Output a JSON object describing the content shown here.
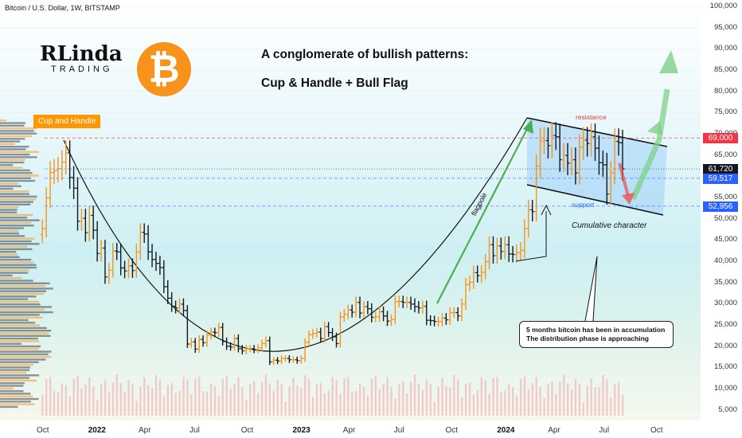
{
  "header": {
    "symbol_line": "Bitcoin / U.S. Dollar, 1W, BITSTAMP"
  },
  "logo": {
    "line1": "RLinda",
    "line2": "TRADING"
  },
  "btc_icon": {
    "glyph": "₿",
    "color": "#f7931a"
  },
  "titles": {
    "line1": "A conglomerate of bullish patterns:",
    "line2": "Cup & Handle  +  Bull Flag"
  },
  "annotations": {
    "cup_label": "Cup and Handle",
    "resistance": "resistance",
    "support": "support",
    "flagpole": "flagpole",
    "cumulative": "Cumulative character",
    "note_line1": "5 months bitcoin has been in accumulation",
    "note_line2": "The distribution phase is approaching"
  },
  "colors": {
    "up_candle": "#f7931a",
    "down_candle": "#131722",
    "resistance": "#e53935",
    "support": "#2962ff",
    "current": "#131722",
    "arrow_green": "#4caf50",
    "arrow_red": "#ef5350",
    "flag_fill": "#90caf9"
  },
  "chart_data": {
    "type": "bar",
    "subtype": "ohlc-weekly",
    "symbol": "Bitcoin / U.S. Dollar",
    "interval": "1W",
    "exchange": "BITSTAMP",
    "ylim": [
      4000,
      100000
    ],
    "y_ticks": [
      5000,
      10000,
      15000,
      20000,
      25000,
      30000,
      35000,
      40000,
      45000,
      50000,
      55000,
      60000,
      65000,
      70000,
      75000,
      80000,
      85000,
      90000,
      95000,
      100000
    ],
    "y_tick_labels": [
      "5,000",
      "10,000",
      "15,000",
      "20,000",
      "25,000",
      "30,000",
      "35,000",
      "40,000",
      "45,000",
      "50,000",
      "55,000",
      "60,000",
      "65,000",
      "70,000",
      "75,000",
      "80,000",
      "85,000",
      "90,000",
      "95,000",
      "100,000"
    ],
    "x_ticks": [
      "Oct",
      "2022",
      "Apr",
      "Jul",
      "Oct",
      "2023",
      "Apr",
      "Jul",
      "Oct",
      "2024",
      "Apr",
      "Jul",
      "Oct"
    ],
    "x_tick_dates": [
      "2021-10",
      "2022-01",
      "2022-04",
      "2022-07",
      "2022-10",
      "2023-01",
      "2023-04",
      "2023-07",
      "2023-10",
      "2024-01",
      "2024-04",
      "2024-07",
      "2024-10"
    ],
    "price_levels": [
      {
        "label": "69,000",
        "value": 69000,
        "color": "#f23645",
        "style": "dashed"
      },
      {
        "label": "61,720",
        "value": 61720,
        "color": "#131722",
        "style": "dotted"
      },
      {
        "label": "59,517",
        "value": 59517,
        "color": "#2962ff",
        "style": "dashed"
      },
      {
        "label": "52,956",
        "value": 52956,
        "color": "#2962ff",
        "style": "dashed"
      }
    ],
    "series_close": [
      [
        "2021-09-27",
        47700
      ],
      [
        "2021-10-04",
        54900
      ],
      [
        "2021-10-11",
        60900
      ],
      [
        "2021-10-18",
        61300
      ],
      [
        "2021-10-25",
        61800
      ],
      [
        "2021-11-01",
        63300
      ],
      [
        "2021-11-08",
        65500
      ],
      [
        "2021-11-15",
        59700
      ],
      [
        "2021-11-22",
        57200
      ],
      [
        "2021-11-29",
        49400
      ],
      [
        "2021-12-06",
        50100
      ],
      [
        "2021-12-13",
        46700
      ],
      [
        "2021-12-20",
        50800
      ],
      [
        "2021-12-27",
        47300
      ],
      [
        "2022-01-03",
        41800
      ],
      [
        "2022-01-10",
        43100
      ],
      [
        "2022-01-17",
        36300
      ],
      [
        "2022-01-24",
        37900
      ],
      [
        "2022-01-31",
        42400
      ],
      [
        "2022-02-07",
        42200
      ],
      [
        "2022-02-14",
        38400
      ],
      [
        "2022-02-21",
        37700
      ],
      [
        "2022-02-28",
        38900
      ],
      [
        "2022-03-07",
        37800
      ],
      [
        "2022-03-14",
        42200
      ],
      [
        "2022-03-21",
        46800
      ],
      [
        "2022-03-28",
        46400
      ],
      [
        "2022-04-04",
        42200
      ],
      [
        "2022-04-11",
        40400
      ],
      [
        "2022-04-18",
        39500
      ],
      [
        "2022-04-25",
        38500
      ],
      [
        "2022-05-02",
        34000
      ],
      [
        "2022-05-09",
        31300
      ],
      [
        "2022-05-16",
        29400
      ],
      [
        "2022-05-23",
        29000
      ],
      [
        "2022-05-30",
        29900
      ],
      [
        "2022-06-06",
        28400
      ],
      [
        "2022-06-13",
        20500
      ],
      [
        "2022-06-20",
        21000
      ],
      [
        "2022-06-27",
        19300
      ],
      [
        "2022-07-04",
        21600
      ],
      [
        "2022-07-11",
        20800
      ],
      [
        "2022-07-18",
        22600
      ],
      [
        "2022-07-25",
        23300
      ],
      [
        "2022-08-01",
        23200
      ],
      [
        "2022-08-08",
        24400
      ],
      [
        "2022-08-15",
        21100
      ],
      [
        "2022-08-22",
        20000
      ],
      [
        "2022-08-29",
        19800
      ],
      [
        "2022-09-05",
        21800
      ],
      [
        "2022-09-12",
        19400
      ],
      [
        "2022-09-19",
        18900
      ],
      [
        "2022-09-26",
        19400
      ],
      [
        "2022-10-03",
        19400
      ],
      [
        "2022-10-10",
        19200
      ],
      [
        "2022-10-17",
        19600
      ],
      [
        "2022-10-24",
        20600
      ],
      [
        "2022-10-31",
        21300
      ],
      [
        "2022-11-07",
        16300
      ],
      [
        "2022-11-14",
        16700
      ],
      [
        "2022-11-21",
        16500
      ],
      [
        "2022-11-28",
        17100
      ],
      [
        "2022-12-05",
        17100
      ],
      [
        "2022-12-12",
        16800
      ],
      [
        "2022-12-19",
        16800
      ],
      [
        "2022-12-26",
        16600
      ],
      [
        "2023-01-02",
        17100
      ],
      [
        "2023-01-09",
        20900
      ],
      [
        "2023-01-16",
        22700
      ],
      [
        "2023-01-23",
        23000
      ],
      [
        "2023-01-30",
        23300
      ],
      [
        "2023-02-06",
        21800
      ],
      [
        "2023-02-13",
        24600
      ],
      [
        "2023-02-20",
        23200
      ],
      [
        "2023-02-27",
        22200
      ],
      [
        "2023-03-06",
        20600
      ],
      [
        "2023-03-13",
        26900
      ],
      [
        "2023-03-20",
        27500
      ],
      [
        "2023-03-27",
        28500
      ],
      [
        "2023-04-03",
        28000
      ],
      [
        "2023-04-10",
        30300
      ],
      [
        "2023-04-17",
        27800
      ],
      [
        "2023-04-24",
        29300
      ],
      [
        "2023-05-01",
        28800
      ],
      [
        "2023-05-08",
        26800
      ],
      [
        "2023-05-15",
        26900
      ],
      [
        "2023-05-22",
        28100
      ],
      [
        "2023-05-29",
        27100
      ],
      [
        "2023-06-05",
        25900
      ],
      [
        "2023-06-12",
        26300
      ],
      [
        "2023-06-19",
        30500
      ],
      [
        "2023-06-26",
        30500
      ],
      [
        "2023-07-03",
        30300
      ],
      [
        "2023-07-10",
        30300
      ],
      [
        "2023-07-17",
        29900
      ],
      [
        "2023-07-24",
        29300
      ],
      [
        "2023-07-31",
        29000
      ],
      [
        "2023-08-07",
        29400
      ],
      [
        "2023-08-14",
        26100
      ],
      [
        "2023-08-21",
        26000
      ],
      [
        "2023-08-28",
        25800
      ],
      [
        "2023-09-04",
        25800
      ],
      [
        "2023-09-11",
        26600
      ],
      [
        "2023-09-18",
        26200
      ],
      [
        "2023-09-25",
        27900
      ],
      [
        "2023-10-02",
        27900
      ],
      [
        "2023-10-09",
        27100
      ],
      [
        "2023-10-16",
        29900
      ],
      [
        "2023-10-23",
        34500
      ],
      [
        "2023-10-30",
        35000
      ],
      [
        "2023-11-06",
        37300
      ],
      [
        "2023-11-13",
        36600
      ],
      [
        "2023-11-20",
        37400
      ],
      [
        "2023-11-27",
        39900
      ],
      [
        "2023-12-04",
        43900
      ],
      [
        "2023-12-11",
        41300
      ],
      [
        "2023-12-18",
        43600
      ],
      [
        "2023-12-25",
        42300
      ],
      [
        "2024-01-01",
        43900
      ],
      [
        "2024-01-08",
        41700
      ],
      [
        "2024-01-15",
        41600
      ],
      [
        "2024-01-22",
        42000
      ],
      [
        "2024-01-29",
        42600
      ],
      [
        "2024-02-05",
        47700
      ],
      [
        "2024-02-12",
        52100
      ],
      [
        "2024-02-19",
        51700
      ],
      [
        "2024-02-26",
        62400
      ],
      [
        "2024-03-04",
        68300
      ],
      [
        "2024-03-11",
        68400
      ],
      [
        "2024-03-18",
        67200
      ],
      [
        "2024-03-25",
        69600
      ],
      [
        "2024-04-01",
        69300
      ],
      [
        "2024-04-08",
        63900
      ],
      [
        "2024-04-15",
        64900
      ],
      [
        "2024-04-22",
        63100
      ],
      [
        "2024-04-29",
        63900
      ],
      [
        "2024-05-06",
        60800
      ],
      [
        "2024-05-13",
        66900
      ],
      [
        "2024-05-20",
        68500
      ],
      [
        "2024-05-27",
        67700
      ],
      [
        "2024-06-03",
        69300
      ],
      [
        "2024-06-10",
        66600
      ],
      [
        "2024-06-17",
        63200
      ],
      [
        "2024-06-24",
        62700
      ],
      [
        "2024-07-01",
        55800
      ],
      [
        "2024-07-08",
        60800
      ],
      [
        "2024-07-15",
        68200
      ],
      [
        "2024-07-22",
        67900
      ],
      [
        "2024-07-29",
        61720
      ]
    ]
  }
}
